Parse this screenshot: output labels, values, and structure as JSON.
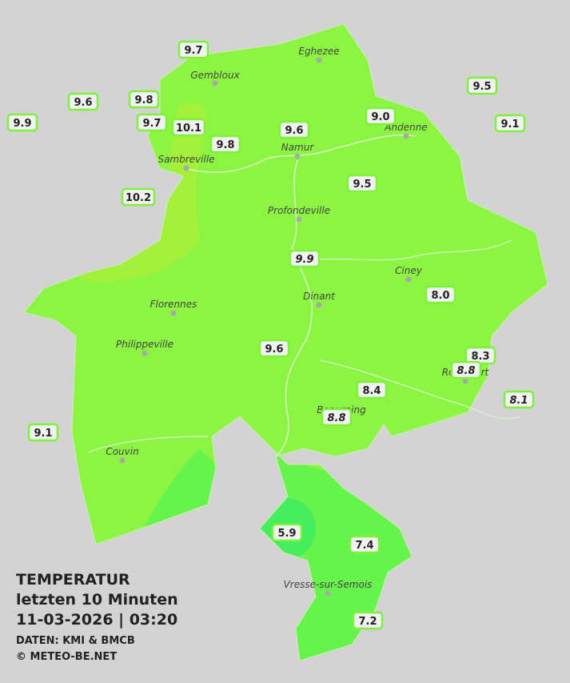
{
  "title": {
    "lines": [
      "TEMPERATUR",
      "letzten 10 Minuten",
      "11-03-2026  |  03:20"
    ],
    "source": "DATEN: KMI & BMCB",
    "copyright": "© METEO-BE.NET"
  },
  "cities": [
    "Eghezee",
    "Gembloux",
    "Andenne",
    "Namur",
    "Sambreville",
    "Profondeville",
    "Ciney",
    "Florennes",
    "Dinant",
    "Philippeville",
    "Rochefort",
    "Beauraing",
    "Couvin",
    "Vresse-sur-Semois"
  ],
  "stations": [
    {
      "label": "9.7"
    },
    {
      "label": "9.5"
    },
    {
      "label": "9.6"
    },
    {
      "label": "9.8"
    },
    {
      "label": "9.9"
    },
    {
      "label": "9.7"
    },
    {
      "label": "10.1"
    },
    {
      "label": "9.0"
    },
    {
      "label": "9.6"
    },
    {
      "label": "9.1"
    },
    {
      "label": "9.8"
    },
    {
      "label": "9.5"
    },
    {
      "label": "10.2"
    },
    {
      "label": "9.9",
      "italic": true
    },
    {
      "label": "8.0"
    },
    {
      "label": "9.6"
    },
    {
      "label": "8.3"
    },
    {
      "label": "8.8",
      "italic": true
    },
    {
      "label": "8.4"
    },
    {
      "label": "8.1",
      "italic": true
    },
    {
      "label": "8.8",
      "italic": true
    },
    {
      "label": "9.1"
    },
    {
      "label": "5.9"
    },
    {
      "label": "7.4"
    },
    {
      "label": "7.2"
    }
  ]
}
